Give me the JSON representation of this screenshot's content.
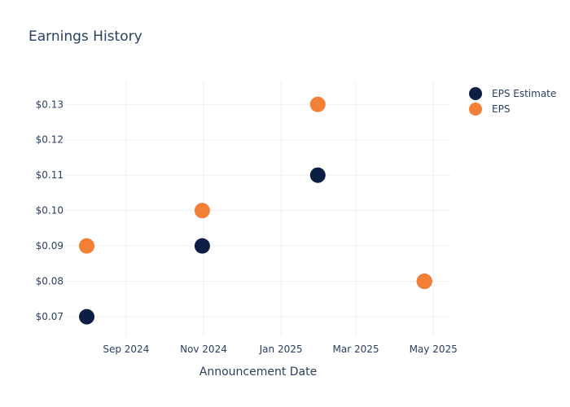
{
  "chart_data": {
    "type": "scatter",
    "title": "Earnings History",
    "xlabel": "Announcement Date",
    "ylabel": "",
    "x_ticks": [
      "Sep 2024",
      "Nov 2024",
      "Jan 2025",
      "Mar 2025",
      "May 2025"
    ],
    "x_tick_dates": [
      "2024-09-01",
      "2024-11-01",
      "2025-01-01",
      "2025-03-01",
      "2025-05-01"
    ],
    "xlim": [
      "2024-07-15",
      "2025-05-15"
    ],
    "y_ticks": [
      "$0.07",
      "$0.08",
      "$0.09",
      "$0.10",
      "$0.11",
      "$0.12",
      "$0.13"
    ],
    "y_tick_values": [
      0.07,
      0.08,
      0.09,
      0.1,
      0.11,
      0.12,
      0.13
    ],
    "ylim": [
      0.0645,
      0.1365
    ],
    "grid": true,
    "legend_position": "top-right",
    "series": [
      {
        "name": "EPS Estimate",
        "color": "#0c1e44",
        "x": [
          "2024-08-01",
          "2024-10-31",
          "2025-01-30",
          "2025-04-24"
        ],
        "y": [
          0.07,
          0.09,
          0.11,
          0.08
        ]
      },
      {
        "name": "EPS",
        "color": "#f47f36",
        "x": [
          "2024-08-01",
          "2024-10-31",
          "2025-01-30",
          "2025-04-24"
        ],
        "y": [
          0.09,
          0.1,
          0.13,
          0.08
        ]
      }
    ]
  }
}
